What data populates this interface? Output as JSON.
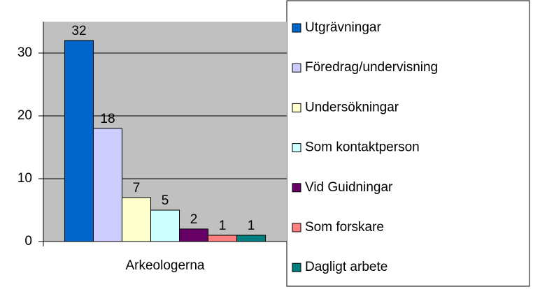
{
  "chart_data": {
    "type": "bar",
    "categories": [
      "Arkeologerna"
    ],
    "series": [
      {
        "name": "Utgrävningar",
        "color": "#0066cc",
        "values": [
          32
        ]
      },
      {
        "name": "Föredrag/undervisning",
        "color": "#ccccff",
        "values": [
          18
        ]
      },
      {
        "name": "Undersökningar",
        "color": "#ffffcc",
        "values": [
          7
        ]
      },
      {
        "name": "Som kontaktperson",
        "color": "#ccffff",
        "values": [
          5
        ]
      },
      {
        "name": "Vid Guidningar",
        "color": "#660066",
        "values": [
          2
        ]
      },
      {
        "name": "Som forskare",
        "color": "#ff8080",
        "values": [
          1
        ]
      },
      {
        "name": "Dagligt arbete",
        "color": "#008080",
        "values": [
          1
        ]
      }
    ],
    "ylim": [
      0,
      35
    ],
    "yticks": [
      0,
      10,
      20,
      30
    ],
    "grid": true,
    "legend": "right"
  }
}
